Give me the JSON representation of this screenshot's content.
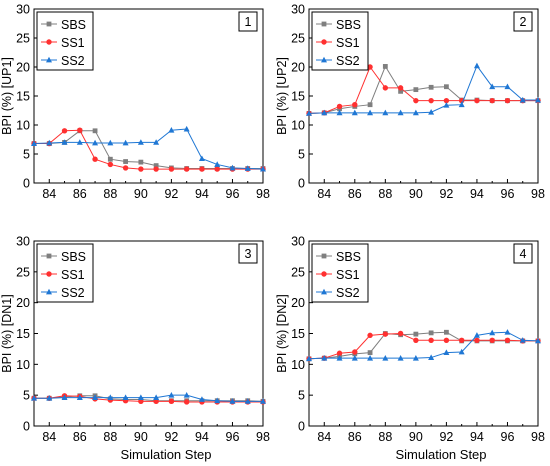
{
  "figure": {
    "xlabel": "Simulation Step"
  },
  "chart_data": [
    {
      "type": "line",
      "panel_label": "1",
      "ylabel": "BPI (%) [UP1]",
      "xlim": [
        83,
        98
      ],
      "ylim": [
        0,
        30
      ],
      "xticks": [
        84,
        86,
        88,
        90,
        92,
        94,
        96,
        98
      ],
      "yticks": [
        0,
        5,
        10,
        15,
        20,
        25,
        30
      ],
      "legend": "top-left",
      "x": [
        83,
        84,
        85,
        86,
        87,
        88,
        89,
        90,
        91,
        92,
        93,
        94,
        95,
        96,
        97,
        98
      ],
      "series": [
        {
          "name": "SBS",
          "color": "#7f7f7f",
          "marker": "square",
          "values": [
            6.8,
            6.8,
            7.0,
            9.0,
            9.0,
            4.1,
            3.7,
            3.6,
            3.0,
            2.6,
            2.5,
            2.5,
            2.5,
            2.5,
            2.5,
            2.5
          ]
        },
        {
          "name": "SS1",
          "color": "#ff3030",
          "marker": "circle",
          "values": [
            6.8,
            6.8,
            9.0,
            9.1,
            4.1,
            3.2,
            2.6,
            2.4,
            2.4,
            2.4,
            2.4,
            2.4,
            2.4,
            2.4,
            2.4,
            2.4
          ]
        },
        {
          "name": "SS2",
          "color": "#1f77d4",
          "marker": "triangle",
          "values": [
            6.8,
            6.9,
            7.0,
            7.0,
            6.9,
            6.9,
            6.9,
            7.0,
            7.0,
            9.1,
            9.3,
            4.2,
            3.2,
            2.6,
            2.5,
            2.4
          ]
        }
      ]
    },
    {
      "type": "line",
      "panel_label": "2",
      "ylabel": "BPI (%) [UP2]",
      "xlim": [
        83,
        98
      ],
      "ylim": [
        0,
        30
      ],
      "xticks": [
        84,
        86,
        88,
        90,
        92,
        94,
        96,
        98
      ],
      "yticks": [
        0,
        5,
        10,
        15,
        20,
        25,
        30
      ],
      "legend": "top-left",
      "x": [
        83,
        84,
        85,
        86,
        87,
        88,
        89,
        90,
        91,
        92,
        93,
        94,
        95,
        96,
        97,
        98
      ],
      "series": [
        {
          "name": "SBS",
          "color": "#7f7f7f",
          "marker": "square",
          "values": [
            12.0,
            12.1,
            12.8,
            13.2,
            13.5,
            20.1,
            15.8,
            16.1,
            16.5,
            16.6,
            14.3,
            14.3,
            14.2,
            14.2,
            14.2,
            14.2
          ]
        },
        {
          "name": "SS1",
          "color": "#ff3030",
          "marker": "circle",
          "values": [
            12.0,
            12.1,
            13.2,
            13.5,
            20.0,
            16.4,
            16.4,
            14.2,
            14.2,
            14.2,
            14.2,
            14.2,
            14.2,
            14.2,
            14.2,
            14.2
          ]
        },
        {
          "name": "SS2",
          "color": "#1f77d4",
          "marker": "triangle",
          "values": [
            12.0,
            12.1,
            12.1,
            12.1,
            12.1,
            12.1,
            12.1,
            12.1,
            12.2,
            13.4,
            13.5,
            20.2,
            16.6,
            16.6,
            14.3,
            14.3
          ]
        }
      ]
    },
    {
      "type": "line",
      "panel_label": "3",
      "ylabel": "BPI (%) [DN1]",
      "xlim": [
        83,
        98
      ],
      "ylim": [
        0,
        30
      ],
      "xticks": [
        84,
        86,
        88,
        90,
        92,
        94,
        96,
        98
      ],
      "yticks": [
        0,
        5,
        10,
        15,
        20,
        25,
        30
      ],
      "legend": "top-left",
      "x": [
        83,
        84,
        85,
        86,
        87,
        88,
        89,
        90,
        91,
        92,
        93,
        94,
        95,
        96,
        97,
        98
      ],
      "series": [
        {
          "name": "SBS",
          "color": "#7f7f7f",
          "marker": "square",
          "values": [
            4.5,
            4.5,
            4.7,
            4.9,
            4.9,
            4.4,
            4.3,
            4.3,
            4.1,
            4.1,
            4.1,
            4.1,
            4.1,
            4.1,
            4.1,
            4.0
          ]
        },
        {
          "name": "SS1",
          "color": "#ff3030",
          "marker": "circle",
          "values": [
            4.5,
            4.5,
            4.9,
            4.8,
            4.4,
            4.2,
            4.1,
            4.0,
            4.0,
            4.0,
            3.9,
            3.9,
            3.9,
            3.9,
            3.9,
            3.9
          ]
        },
        {
          "name": "SS2",
          "color": "#1f77d4",
          "marker": "triangle",
          "values": [
            4.5,
            4.5,
            4.6,
            4.6,
            4.6,
            4.6,
            4.6,
            4.6,
            4.6,
            5.0,
            5.0,
            4.3,
            4.1,
            4.0,
            4.0,
            4.0
          ]
        }
      ]
    },
    {
      "type": "line",
      "panel_label": "4",
      "ylabel": "BPI (%) [DN2]",
      "xlim": [
        83,
        98
      ],
      "ylim": [
        0,
        30
      ],
      "xticks": [
        84,
        86,
        88,
        90,
        92,
        94,
        96,
        98
      ],
      "yticks": [
        0,
        5,
        10,
        15,
        20,
        25,
        30
      ],
      "legend": "top-left",
      "x": [
        83,
        84,
        85,
        86,
        87,
        88,
        89,
        90,
        91,
        92,
        93,
        94,
        95,
        96,
        97,
        98
      ],
      "series": [
        {
          "name": "SBS",
          "color": "#7f7f7f",
          "marker": "square",
          "values": [
            10.9,
            11.0,
            11.3,
            11.7,
            11.9,
            15.0,
            14.8,
            14.9,
            15.1,
            15.2,
            13.8,
            13.8,
            13.8,
            13.8,
            13.8,
            13.8
          ]
        },
        {
          "name": "SS1",
          "color": "#ff3030",
          "marker": "circle",
          "values": [
            10.9,
            11.0,
            11.8,
            12.0,
            14.7,
            14.9,
            15.0,
            13.9,
            13.9,
            13.9,
            13.9,
            13.9,
            13.9,
            13.9,
            13.8,
            13.8
          ]
        },
        {
          "name": "SS2",
          "color": "#1f77d4",
          "marker": "triangle",
          "values": [
            10.9,
            11.0,
            11.0,
            11.0,
            11.0,
            11.0,
            11.0,
            11.0,
            11.1,
            11.9,
            12.0,
            14.7,
            15.1,
            15.2,
            13.9,
            13.8
          ]
        }
      ]
    }
  ]
}
